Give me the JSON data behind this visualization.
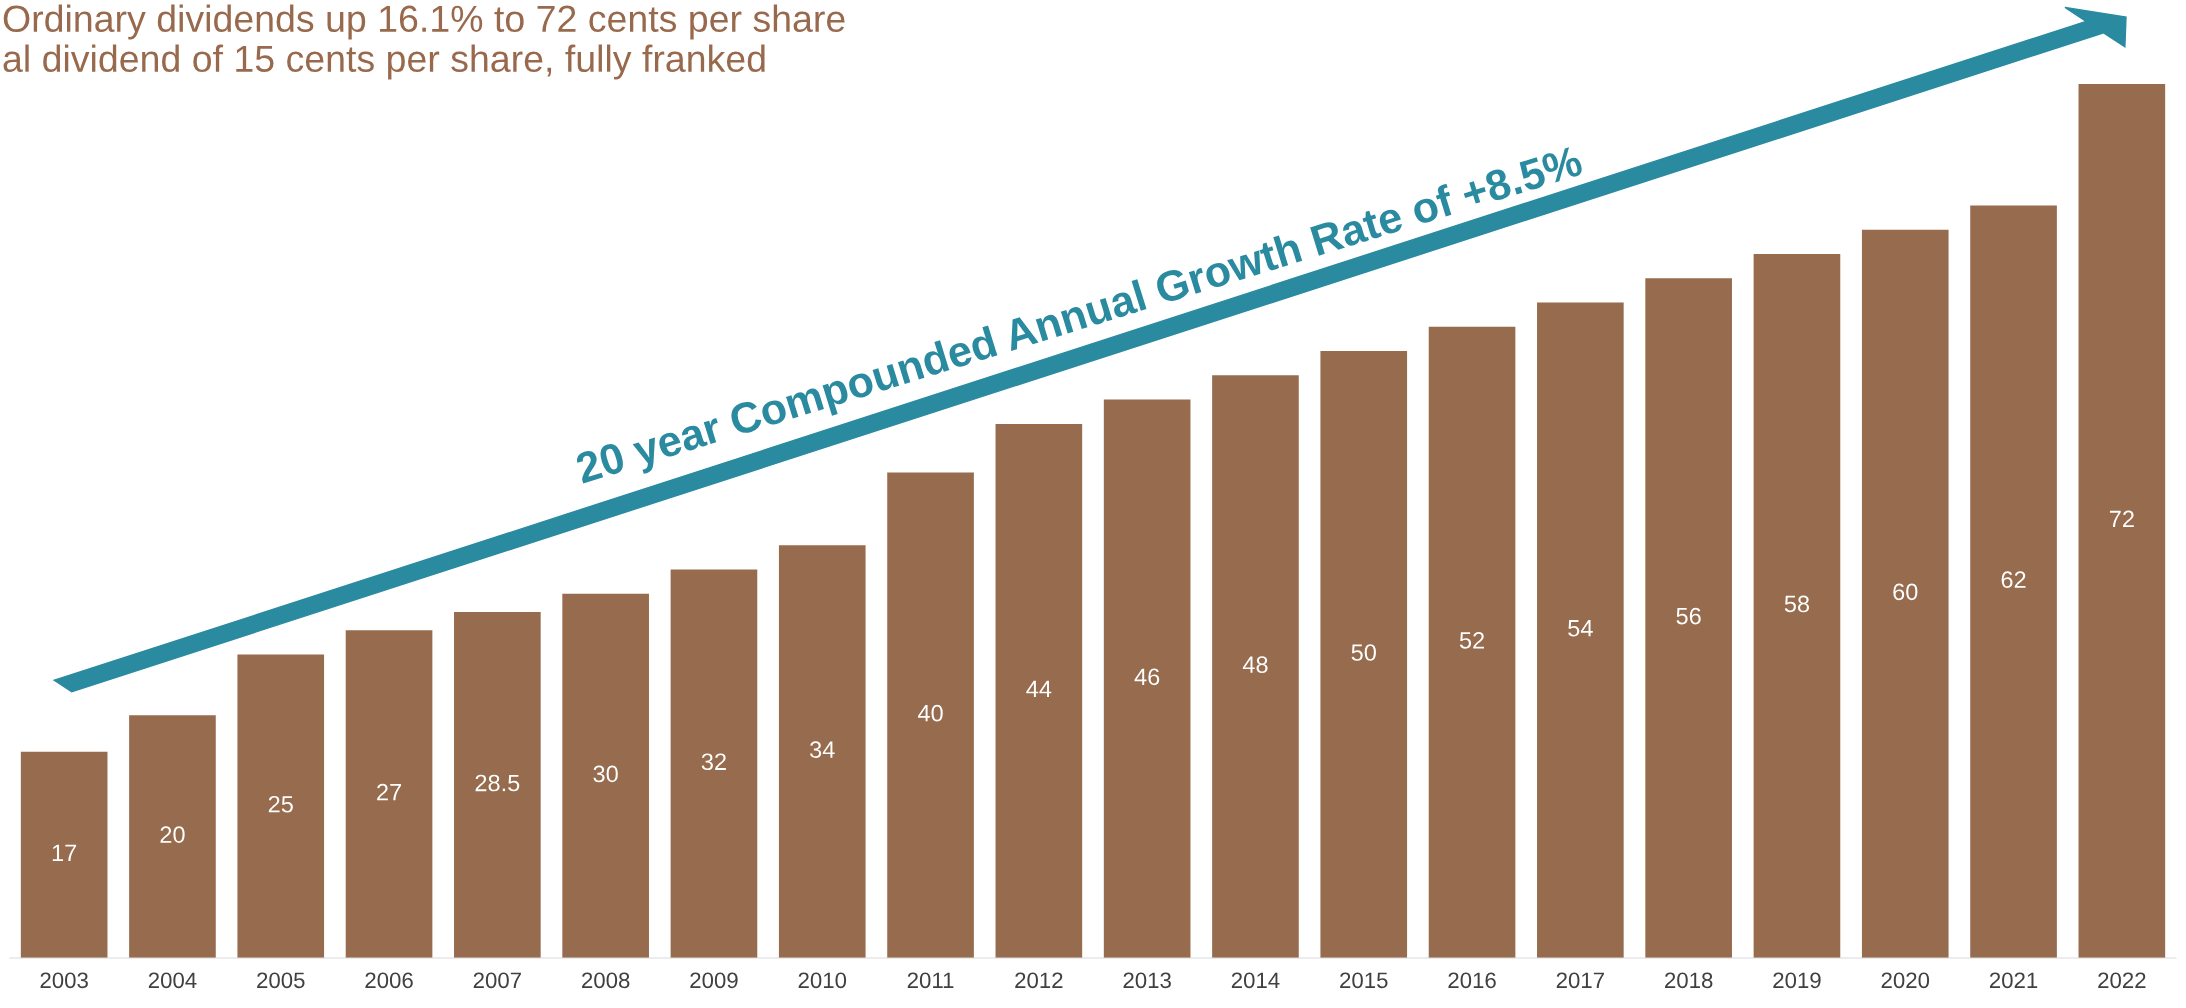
{
  "chart_data": {
    "type": "bar",
    "title": "Ordinary dividends up 16.1% to 72 cents per share",
    "subtitle": "al dividend of 15 cents per share, fully franked",
    "categories": [
      "2003",
      "2004",
      "2005",
      "2006",
      "2007",
      "2008",
      "2009",
      "2010",
      "2011",
      "2012",
      "2013",
      "2014",
      "2015",
      "2016",
      "2017",
      "2018",
      "2019",
      "2020",
      "2021",
      "2022"
    ],
    "values": [
      17,
      20,
      25,
      27,
      28.5,
      30,
      32,
      34,
      40,
      44,
      46,
      48,
      50,
      52,
      54,
      56,
      58,
      60,
      62,
      72
    ],
    "color": "#976b4d",
    "data_labels": true,
    "grid": false,
    "legend": false,
    "annotations": [
      "20 year Compounded Annual Growth Rate of +8.5%"
    ]
  }
}
